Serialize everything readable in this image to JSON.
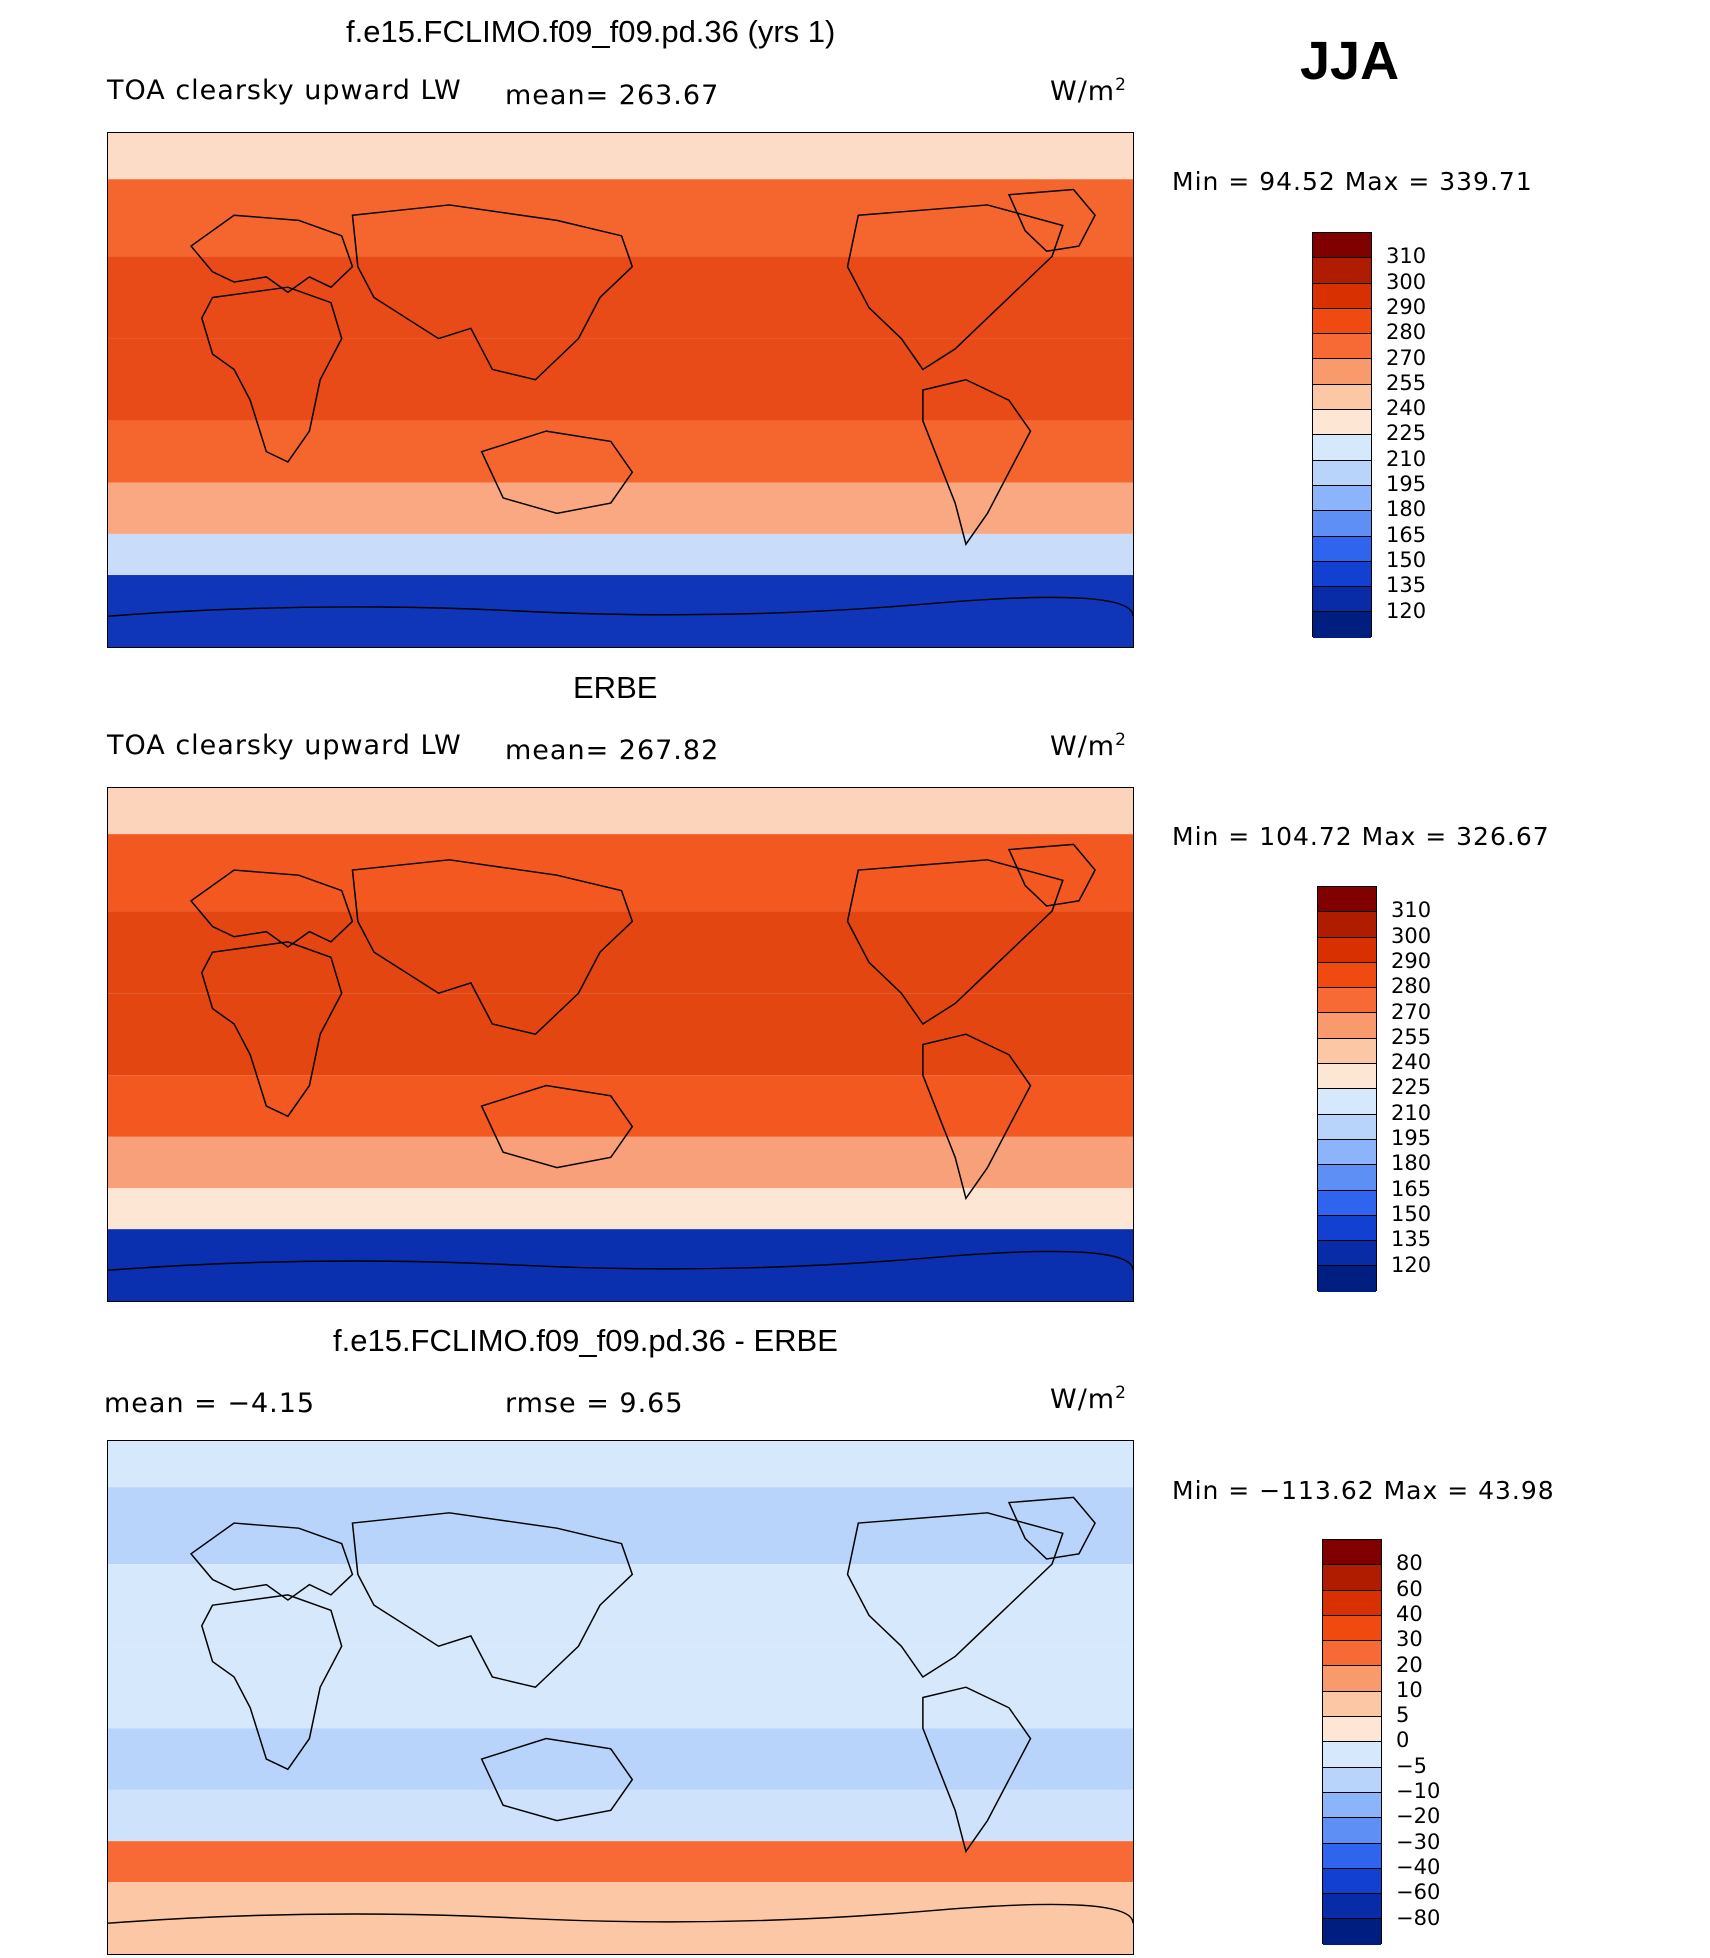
{
  "season": "JJA",
  "panels": [
    {
      "id": "model",
      "title": "f.e15.FCLIMO.f09_f09.pd.36 (yrs 1)",
      "left_label": "TOA clearsky upward LW",
      "center_label": "mean= 263.67",
      "units_base": "W/m",
      "units_exp": "2",
      "min_max": "Min =   94.52 Max = 339.71",
      "levels": [
        "310",
        "300",
        "290",
        "280",
        "270",
        "255",
        "240",
        "225",
        "210",
        "195",
        "180",
        "165",
        "150",
        "135",
        "120"
      ],
      "colors": [
        "#800000",
        "#b01c00",
        "#d83000",
        "#f04a10",
        "#f76a35",
        "#f99a6c",
        "#fcc7a4",
        "#fde6d4",
        "#d6e8fb",
        "#b8d4fb",
        "#8cb4fa",
        "#5e8ff5",
        "#2e64ee",
        "#1240d0",
        "#082ca8",
        "#001d80"
      ],
      "fields": {
        "north": "#fcdcc6",
        "mid": "#f5662e",
        "tropic": "#e84a18",
        "south_mid": "#f9a882",
        "south": "#c9ddfb",
        "antarctic": "#0f36b8"
      }
    },
    {
      "id": "obs",
      "title": "ERBE",
      "left_label": "TOA clearsky upward LW",
      "center_label": "mean= 267.82",
      "units_base": "W/m",
      "units_exp": "2",
      "min_max": "Min = 104.72 Max = 326.67",
      "levels": [
        "310",
        "300",
        "290",
        "280",
        "270",
        "255",
        "240",
        "225",
        "210",
        "195",
        "180",
        "165",
        "150",
        "135",
        "120"
      ],
      "colors": [
        "#800000",
        "#b01c00",
        "#d83000",
        "#f04a10",
        "#f76a35",
        "#f99a6c",
        "#fcc7a4",
        "#fde6d4",
        "#d6e8fb",
        "#b8d4fb",
        "#8cb4fa",
        "#5e8ff5",
        "#2e64ee",
        "#1240d0",
        "#082ca8",
        "#001d80"
      ],
      "fields": {
        "north": "#fcd4bc",
        "mid": "#f2581f",
        "tropic": "#e44612",
        "south_mid": "#f8a07a",
        "south": "#fde6d4",
        "antarctic": "#0a30b0"
      }
    },
    {
      "id": "diff",
      "title": "f.e15.FCLIMO.f09_f09.pd.36 - ERBE",
      "left_label": "mean =   −4.15",
      "center_label": "rmse =    9.65",
      "units_base": "W/m",
      "units_exp": "2",
      "min_max": "Min = −113.62 Max =   43.98",
      "levels": [
        "80",
        "60",
        "40",
        "30",
        "20",
        "10",
        "5",
        "0",
        "−5",
        "−10",
        "−20",
        "−30",
        "−40",
        "−60",
        "−80"
      ],
      "colors": [
        "#800000",
        "#b01c00",
        "#d83000",
        "#f04a10",
        "#f76a35",
        "#f99a6c",
        "#fcc7a4",
        "#fde6d4",
        "#d6e8fb",
        "#b8d4fb",
        "#8cb4fa",
        "#5e8ff5",
        "#2e64ee",
        "#1240d0",
        "#082ca8",
        "#001d80"
      ],
      "fields": {
        "north": "#d6e8fb",
        "mid": "#b8d4fb",
        "tropic": "#d6e8fb",
        "south_mid": "#cfe2fb",
        "south": "#f76a35",
        "antarctic": "#fcc7a4"
      }
    }
  ]
}
